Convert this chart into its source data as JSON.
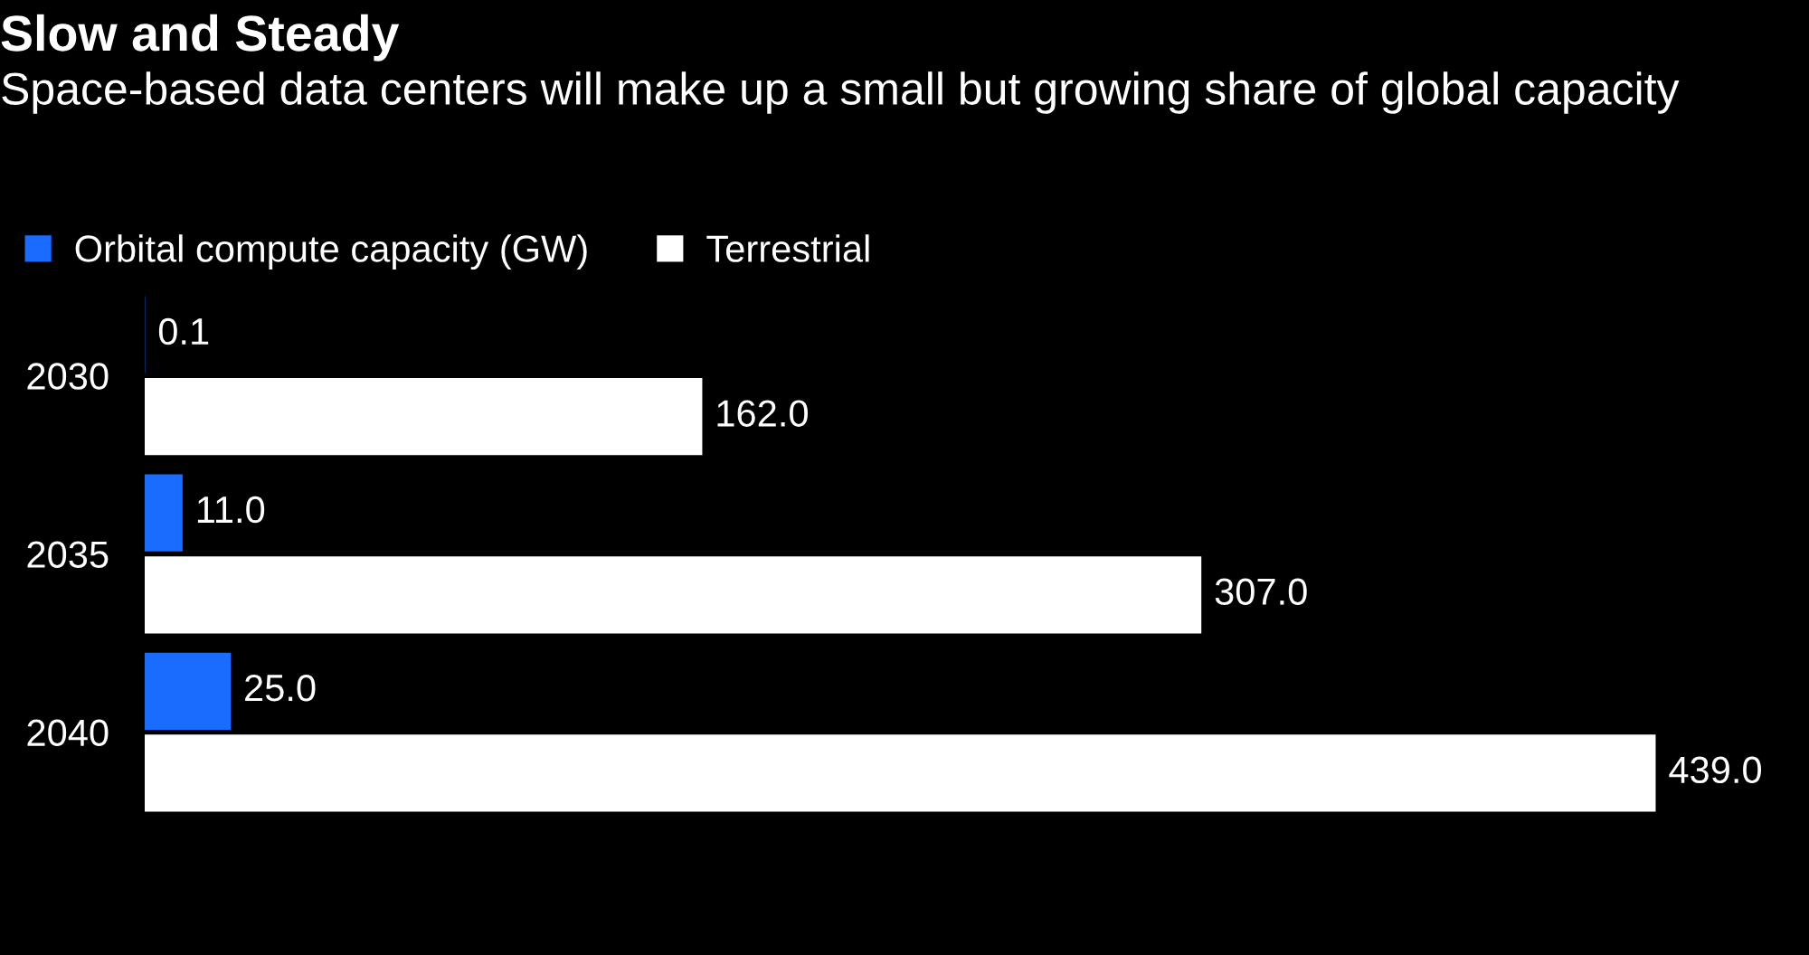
{
  "chart_data": {
    "type": "bar",
    "orientation": "horizontal",
    "title": "Slow and Steady",
    "subtitle": "Space-based data centers will make up a small but growing share of global capacity",
    "categories": [
      "2030",
      "2035",
      "2040"
    ],
    "series": [
      {
        "name": "Orbital compute capacity (GW)",
        "color": "#1a6bff",
        "values": [
          0.1,
          11.0,
          25.0
        ],
        "value_labels": [
          "0.1",
          "11.0",
          "25.0"
        ]
      },
      {
        "name": "Terrestrial",
        "color": "#ffffff",
        "values": [
          162.0,
          307.0,
          439.0
        ],
        "value_labels": [
          "162.0",
          "307.0",
          "439.0"
        ]
      }
    ],
    "legend": "top left",
    "grid": false
  }
}
